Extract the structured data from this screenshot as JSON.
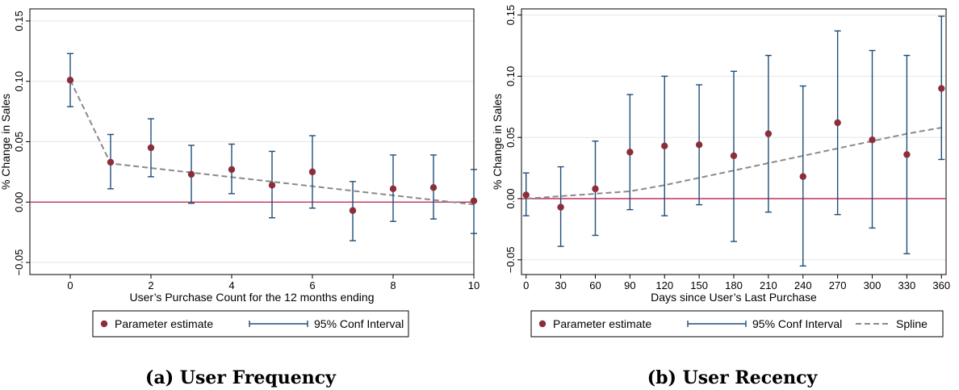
{
  "colors": {
    "estimate": "#8b2e3a",
    "ci": "#1f4e79",
    "spline": "#8a8a8a",
    "zero_line": "#c0305a",
    "grid": "#e6e6e6"
  },
  "legend_labels": {
    "estimate": "Parameter estimate",
    "ci": "95% Conf Interval",
    "spline": "Spline"
  },
  "chart_data": [
    {
      "type": "scatter",
      "caption": "(a) User Frequency",
      "xlabel": "User’s Purchase Count for the 12 months ending",
      "ylabel": "% Change in Sales",
      "xlim": [
        -1,
        10
      ],
      "ylim": [
        -0.06,
        0.16
      ],
      "x_ticks": [
        0,
        2,
        4,
        6,
        8,
        10
      ],
      "y_ticks": [
        -0.05,
        0.0,
        0.05,
        0.1,
        0.15
      ],
      "y_tick_labels": [
        "−0.05",
        "0.00",
        "0.05",
        "0.10",
        "0.15"
      ],
      "grid": "horizontal",
      "legend": [
        "estimate",
        "ci"
      ],
      "legend_position": "bottom",
      "x": [
        0,
        1,
        2,
        3,
        4,
        5,
        6,
        7,
        8,
        9,
        10
      ],
      "estimate": [
        0.101,
        0.033,
        0.045,
        0.023,
        0.027,
        0.014,
        0.025,
        -0.007,
        0.011,
        0.012,
        0.001
      ],
      "ci_low": [
        0.079,
        0.011,
        0.021,
        -0.001,
        0.007,
        -0.013,
        -0.005,
        -0.032,
        -0.016,
        -0.014,
        -0.026
      ],
      "ci_high": [
        0.123,
        0.056,
        0.069,
        0.047,
        0.048,
        0.042,
        0.055,
        0.017,
        0.039,
        0.039,
        0.027
      ],
      "spline": {
        "x": [
          0,
          1,
          10
        ],
        "y": [
          0.101,
          0.032,
          -0.002
        ]
      }
    },
    {
      "type": "scatter",
      "caption": "(b) User Recency",
      "xlabel": "Days since User’s Last Purchase",
      "ylabel": "% Change in Sales",
      "xlim": [
        -4,
        364
      ],
      "ylim": [
        -0.062,
        0.155
      ],
      "x_ticks": [
        0,
        30,
        60,
        90,
        120,
        150,
        180,
        210,
        240,
        270,
        300,
        330,
        360
      ],
      "y_ticks": [
        -0.05,
        0.0,
        0.05,
        0.1,
        0.15
      ],
      "y_tick_labels": [
        "−0.05",
        "0.00",
        "0.05",
        "0.10",
        "0.15"
      ],
      "grid": "horizontal",
      "legend": [
        "estimate",
        "ci",
        "spline"
      ],
      "legend_position": "bottom",
      "x": [
        0,
        30,
        60,
        90,
        120,
        150,
        180,
        210,
        240,
        270,
        300,
        330,
        360
      ],
      "estimate": [
        0.003,
        -0.007,
        0.008,
        0.038,
        0.043,
        0.044,
        0.035,
        0.053,
        0.018,
        0.062,
        0.048,
        0.036,
        0.09
      ],
      "ci_low": [
        -0.014,
        -0.039,
        -0.03,
        -0.009,
        -0.014,
        -0.005,
        -0.035,
        -0.011,
        -0.055,
        -0.013,
        -0.024,
        -0.045,
        0.032
      ],
      "ci_high": [
        0.021,
        0.026,
        0.047,
        0.085,
        0.1,
        0.093,
        0.104,
        0.117,
        0.092,
        0.137,
        0.121,
        0.117,
        0.149
      ],
      "spline": {
        "x": [
          0,
          30,
          60,
          90,
          120,
          150,
          180,
          210,
          240,
          270,
          300,
          330,
          360
        ],
        "y": [
          0.0,
          0.002,
          0.004,
          0.006,
          0.011,
          0.017,
          0.023,
          0.029,
          0.035,
          0.041,
          0.047,
          0.053,
          0.058
        ]
      }
    }
  ]
}
